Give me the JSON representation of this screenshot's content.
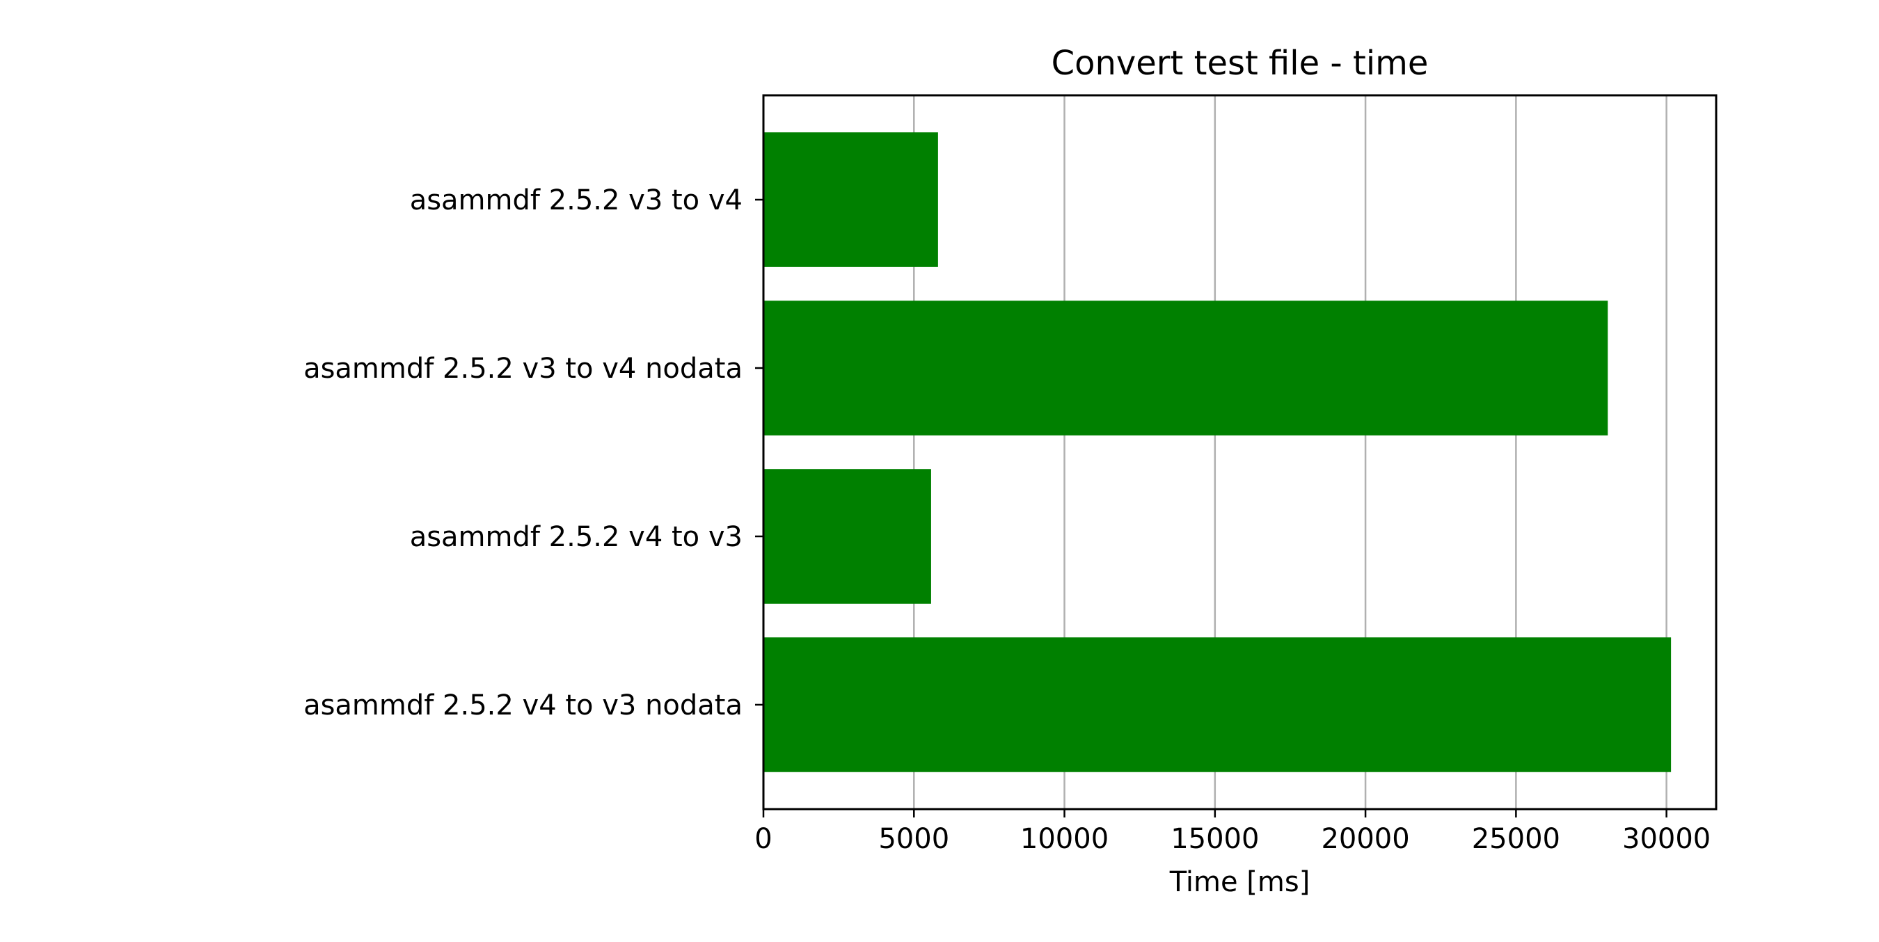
{
  "chart_data": {
    "type": "bar",
    "orientation": "horizontal",
    "title": "Convert test file - time",
    "xlabel": "Time [ms]",
    "ylabel": "",
    "categories": [
      "asammdf 2.5.2 v3 to v4",
      "asammdf 2.5.2 v3 to v4 nodata",
      "asammdf 2.5.2 v4 to v3",
      "asammdf 2.5.2 v4 to v3 nodata"
    ],
    "values": [
      5800,
      28050,
      5570,
      30150
    ],
    "xlim": [
      0,
      31650
    ],
    "xticks": [
      "0",
      "5000",
      "10000",
      "15000",
      "20000",
      "25000",
      "30000"
    ],
    "bar_color": "#008000",
    "grid": "x-axis vertical lines",
    "legend": "none"
  }
}
